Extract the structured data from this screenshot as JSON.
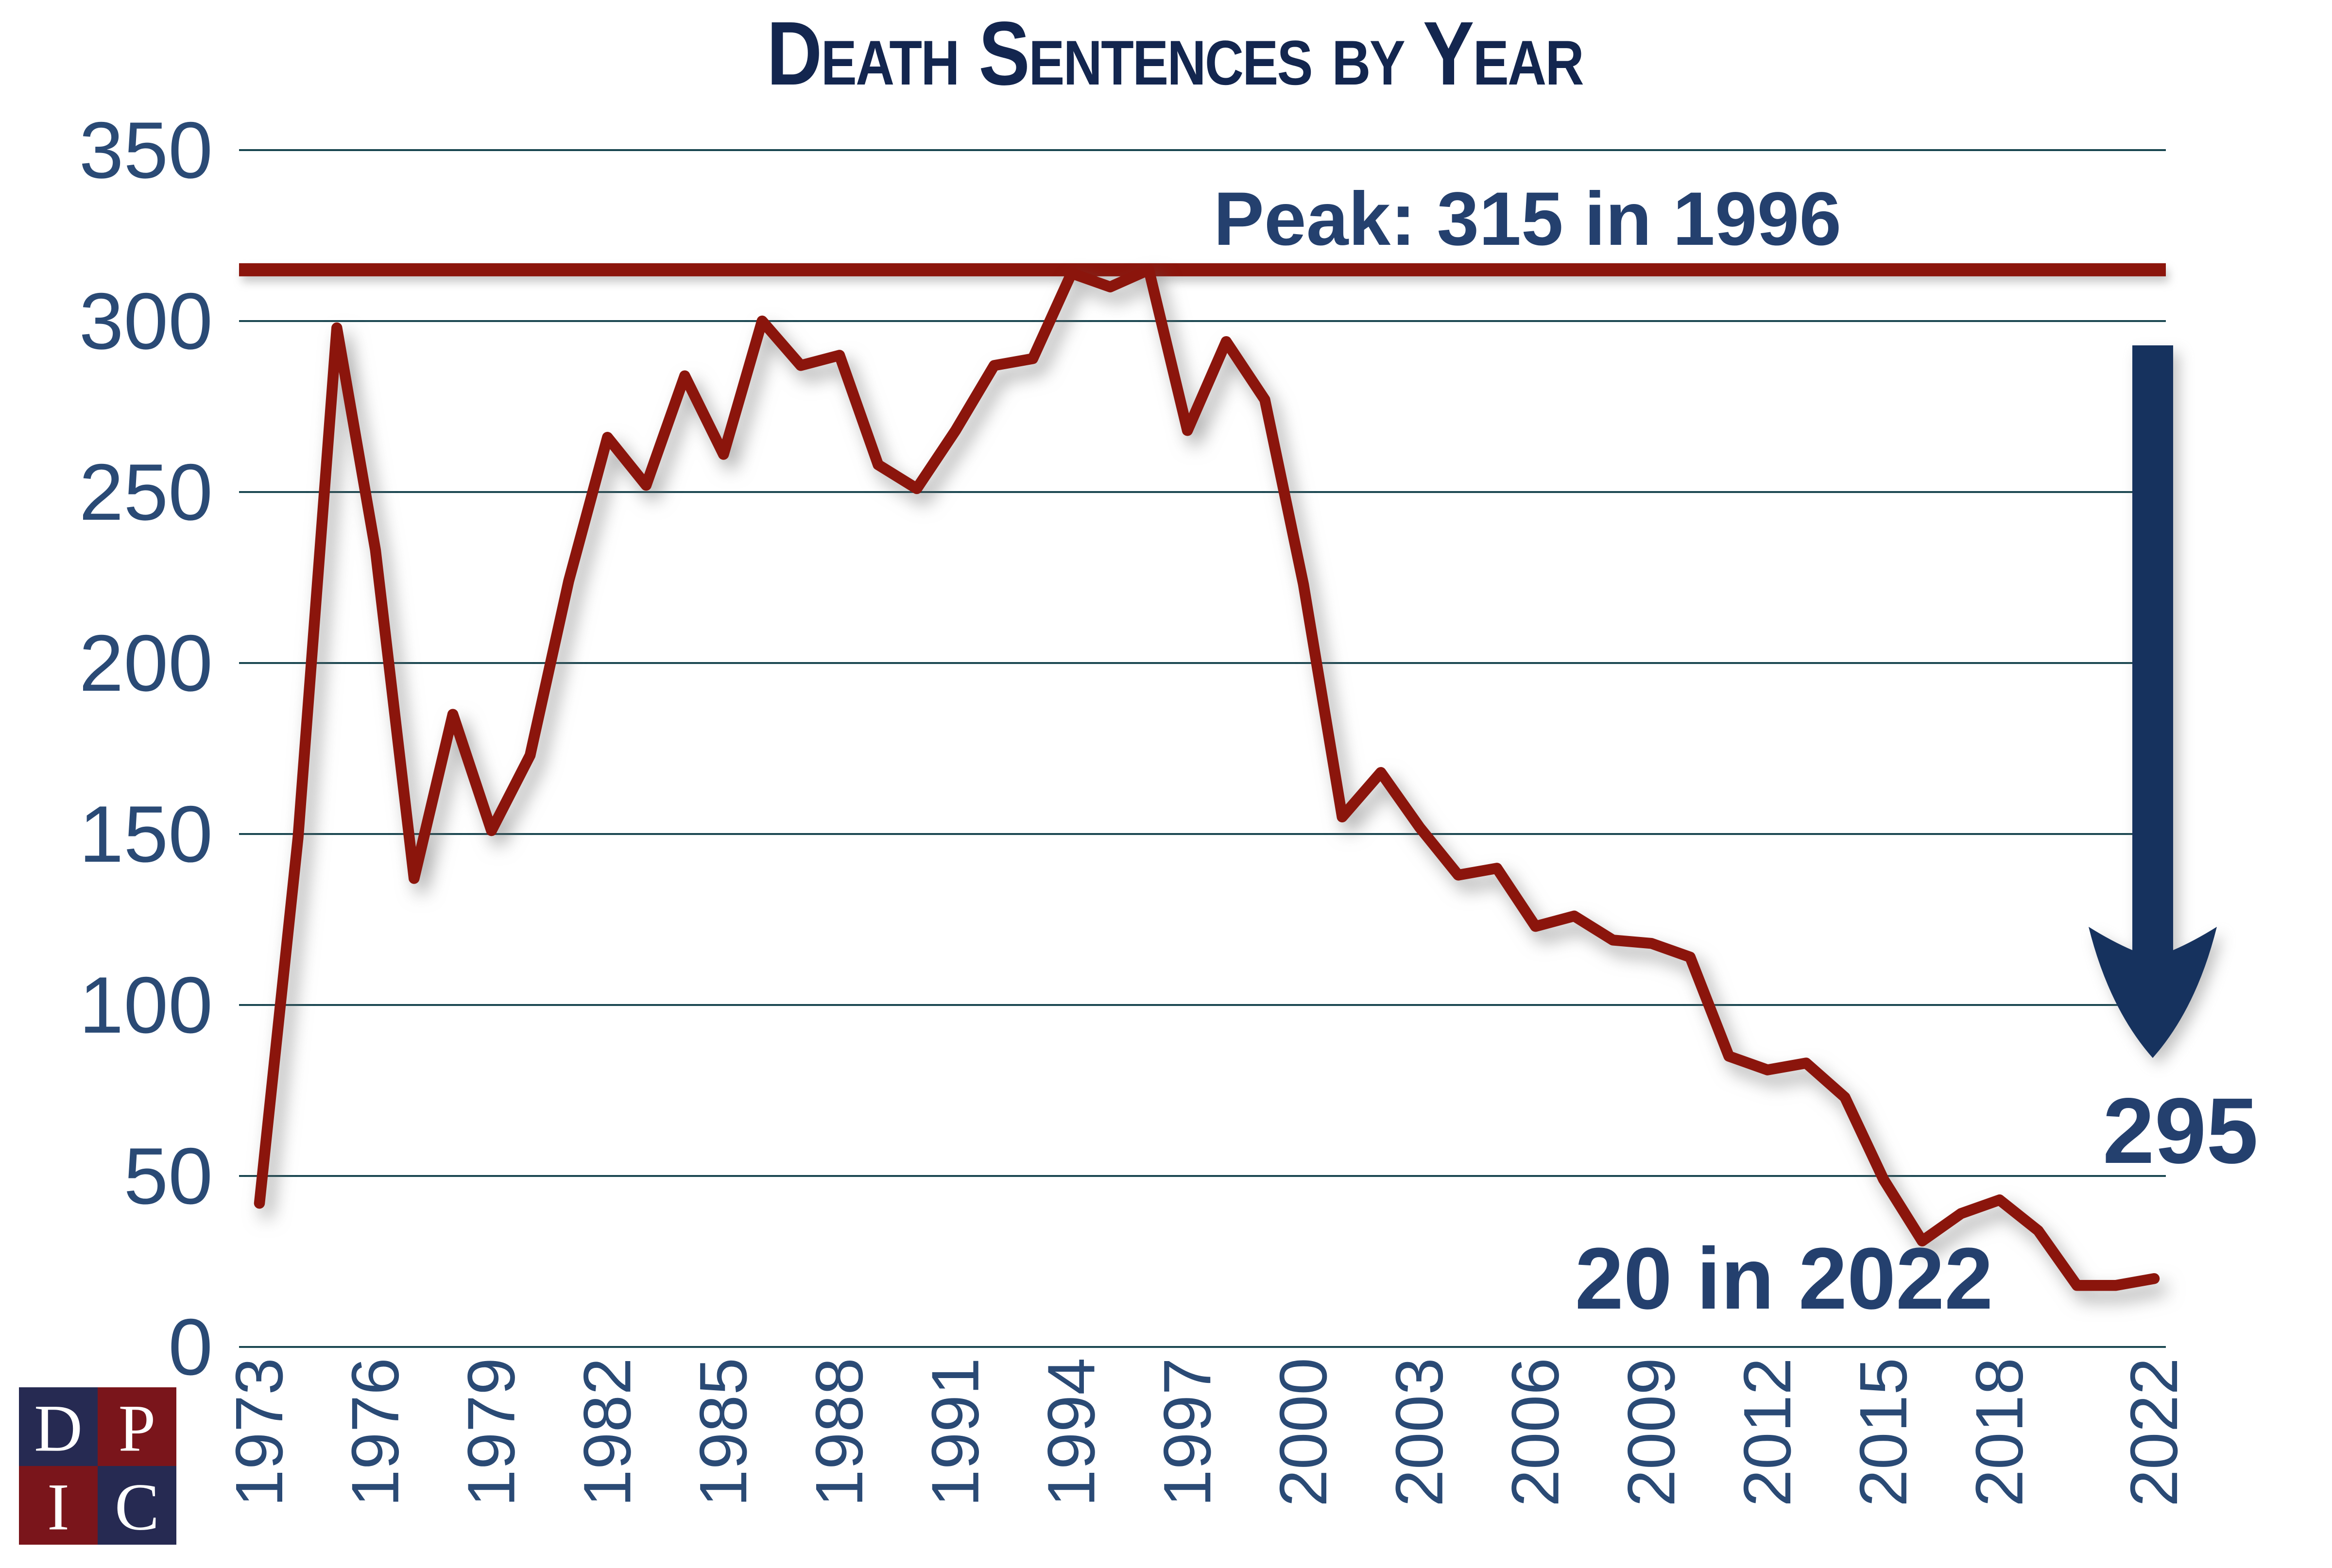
{
  "title": "Death Sentences by Year",
  "annotations": {
    "peak": "Peak: 315 in 1996",
    "latest": "20 in 2022",
    "drop": "295"
  },
  "logo": {
    "letters": [
      "D",
      "P",
      "I",
      "C"
    ],
    "navy": "#262a52",
    "red": "#7a151b"
  },
  "colors": {
    "background": "#ffffff",
    "title_navy": "#13264f",
    "annotation_navy": "#24406e",
    "axis_navy": "#2a4a75",
    "grid_teal": "#17444e",
    "line_red": "#8b150c",
    "arrow_navy": "#16325e"
  },
  "chart_data": {
    "type": "line",
    "title": "Death Sentences by Year",
    "xlabel": "",
    "ylabel": "",
    "ylim": [
      0,
      350
    ],
    "grid": true,
    "yticks": [
      0,
      50,
      100,
      150,
      200,
      250,
      300,
      350
    ],
    "xticks": [
      1973,
      1976,
      1979,
      1982,
      1985,
      1988,
      1991,
      1994,
      1997,
      2000,
      2003,
      2006,
      2009,
      2012,
      2015,
      2018,
      2022
    ],
    "x": [
      1973,
      1974,
      1975,
      1976,
      1977,
      1978,
      1979,
      1980,
      1981,
      1982,
      1983,
      1984,
      1985,
      1986,
      1987,
      1988,
      1989,
      1990,
      1991,
      1992,
      1993,
      1994,
      1995,
      1996,
      1997,
      1998,
      1999,
      2000,
      2001,
      2002,
      2003,
      2004,
      2005,
      2006,
      2007,
      2008,
      2009,
      2010,
      2011,
      2012,
      2013,
      2014,
      2015,
      2016,
      2017,
      2018,
      2019,
      2020,
      2021,
      2022
    ],
    "values": [
      42,
      149,
      298,
      233,
      137,
      185,
      151,
      173,
      224,
      266,
      252,
      284,
      261,
      300,
      287,
      290,
      258,
      251,
      268,
      287,
      289,
      314,
      310,
      315,
      268,
      294,
      277,
      223,
      155,
      168,
      152,
      138,
      140,
      123,
      126,
      119,
      118,
      114,
      85,
      81,
      83,
      73,
      49,
      31,
      39,
      43,
      34,
      18,
      18,
      20
    ],
    "series_name": "Death sentences",
    "reference_line": {
      "value": 315,
      "label": "Peak: 315 in 1996"
    },
    "peak": {
      "year": 1996,
      "value": 315
    },
    "latest": {
      "year": 2022,
      "value": 20
    },
    "decline_from_peak": 295,
    "legend": "none"
  }
}
